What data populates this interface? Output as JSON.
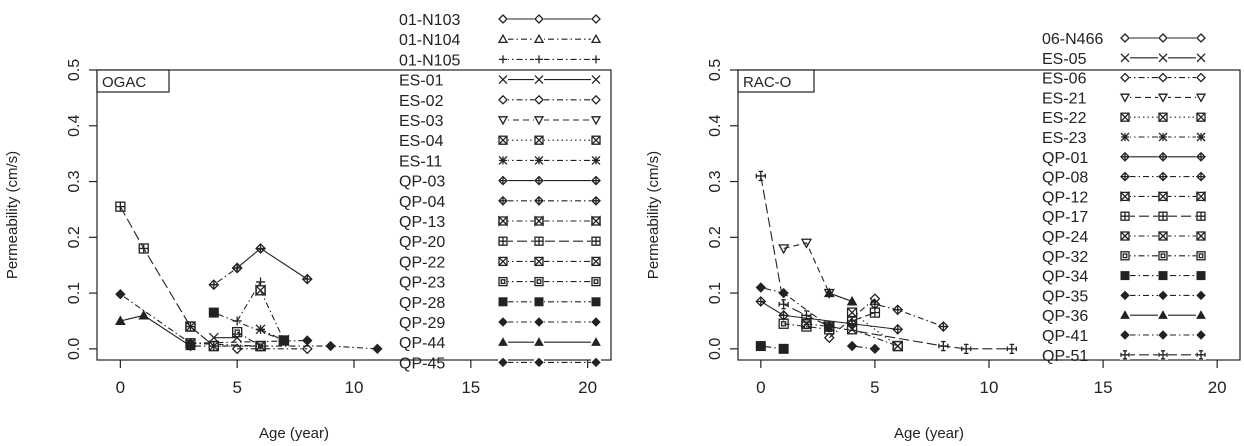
{
  "chart_data": [
    {
      "type": "line",
      "panel_label": "OGAC",
      "xlabel": "Age (year)",
      "ylabel": "Permeability (cm/s)",
      "xlim": [
        -1,
        21
      ],
      "ylim": [
        -0.02,
        0.5
      ],
      "xticks": [
        0,
        5,
        10,
        15,
        20
      ],
      "yticks": [
        0.0,
        0.1,
        0.2,
        0.3,
        0.4,
        0.5
      ],
      "legend_position": "right",
      "series": [
        {
          "name": "01-N103",
          "marker": "diamond-open",
          "dash": "solid",
          "x": [],
          "y": []
        },
        {
          "name": "01-N104",
          "marker": "triangle-open",
          "dash": "dotdash",
          "x": [],
          "y": []
        },
        {
          "name": "01-N105",
          "marker": "plus",
          "dash": "dashdot",
          "x": [
            5,
            6
          ],
          "y": [
            0.05,
            0.12
          ]
        },
        {
          "name": "ES-01",
          "marker": "cross",
          "dash": "solid",
          "x": [
            4,
            5
          ],
          "y": [
            0.02,
            0.02
          ]
        },
        {
          "name": "ES-02",
          "marker": "diamond-open",
          "dash": "dashdot",
          "x": [
            5,
            8
          ],
          "y": [
            0.0,
            0.0
          ]
        },
        {
          "name": "ES-03",
          "marker": "triangle-down-open",
          "dash": "dashed",
          "x": [],
          "y": []
        },
        {
          "name": "ES-04",
          "marker": "square-cross",
          "dash": "dotted",
          "x": [
            3,
            4,
            6
          ],
          "y": [
            0.04,
            0.005,
            0.005
          ]
        },
        {
          "name": "ES-11",
          "marker": "asterisk",
          "dash": "dashdot",
          "x": [
            6,
            7
          ],
          "y": [
            0.035,
            0.015
          ]
        },
        {
          "name": "QP-03",
          "marker": "diamond-plus",
          "dash": "solid",
          "x": [
            5,
            6,
            8
          ],
          "y": [
            0.145,
            0.18,
            0.125
          ]
        },
        {
          "name": "QP-04",
          "marker": "diamond-plus",
          "dash": "dotdash",
          "x": [
            4,
            5
          ],
          "y": [
            0.115,
            0.145
          ]
        },
        {
          "name": "QP-13",
          "marker": "square-bowtie",
          "dash": "dashdot",
          "x": [
            6,
            7
          ],
          "y": [
            0.105,
            0.015
          ]
        },
        {
          "name": "QP-20",
          "marker": "square-plus",
          "dash": "longdash",
          "x": [
            0,
            1,
            3,
            4
          ],
          "y": [
            0.255,
            0.18,
            0.04,
            0.005
          ]
        },
        {
          "name": "QP-22",
          "marker": "square-x",
          "dash": "dashdot",
          "x": [
            3,
            6
          ],
          "y": [
            0.01,
            0.005
          ]
        },
        {
          "name": "QP-23",
          "marker": "square-open",
          "dash": "dashdot",
          "x": [
            5,
            6
          ],
          "y": [
            0.03,
            0.005
          ]
        },
        {
          "name": "QP-28",
          "marker": "square-filled",
          "dash": "dotdash",
          "x": [
            4,
            7
          ],
          "y": [
            0.065,
            0.015
          ]
        },
        {
          "name": "QP-29",
          "marker": "diamond-filled",
          "dash": "dotdash",
          "x": [
            0,
            3,
            8
          ],
          "y": [
            0.098,
            0.01,
            0.015
          ]
        },
        {
          "name": "QP-44",
          "marker": "triangle-filled",
          "dash": "solid",
          "x": [
            0,
            1,
            3
          ],
          "y": [
            0.05,
            0.06,
            0.005
          ]
        },
        {
          "name": "QP-45",
          "marker": "diamond-filled",
          "dash": "dotdash",
          "x": [
            3,
            9,
            11
          ],
          "y": [
            0.005,
            0.005,
            0.0
          ]
        }
      ]
    },
    {
      "type": "line",
      "panel_label": "RAC-O",
      "xlabel": "Age (year)",
      "ylabel": "Permeability (cm/s)",
      "xlim": [
        -1,
        21
      ],
      "ylim": [
        -0.02,
        0.5
      ],
      "xticks": [
        0,
        5,
        10,
        15,
        20
      ],
      "yticks": [
        0.0,
        0.1,
        0.2,
        0.3,
        0.4,
        0.5
      ],
      "legend_position": "right",
      "series": [
        {
          "name": "06-N466",
          "marker": "diamond-open",
          "dash": "solid",
          "x": [],
          "y": []
        },
        {
          "name": "ES-05",
          "marker": "cross",
          "dash": "solid",
          "x": [],
          "y": []
        },
        {
          "name": "ES-06",
          "marker": "diamond-open",
          "dash": "dashdot",
          "x": [
            3,
            5
          ],
          "y": [
            0.02,
            0.09
          ]
        },
        {
          "name": "ES-21",
          "marker": "triangle-down-open",
          "dash": "dashed",
          "x": [
            1,
            2,
            3
          ],
          "y": [
            0.18,
            0.19,
            0.1
          ]
        },
        {
          "name": "ES-22",
          "marker": "square-cross",
          "dash": "dotted",
          "x": [
            4,
            6
          ],
          "y": [
            0.065,
            0.005
          ]
        },
        {
          "name": "ES-23",
          "marker": "asterisk",
          "dash": "dashdot",
          "x": [],
          "y": []
        },
        {
          "name": "QP-01",
          "marker": "diamond-plus",
          "dash": "solid",
          "x": [
            0,
            1,
            4,
            6
          ],
          "y": [
            0.085,
            0.06,
            0.045,
            0.035
          ]
        },
        {
          "name": "QP-08",
          "marker": "diamond-plus",
          "dash": "dotdash",
          "x": [
            5,
            6,
            8
          ],
          "y": [
            0.08,
            0.07,
            0.04
          ]
        },
        {
          "name": "QP-12",
          "marker": "square-bowtie",
          "dash": "dashdot",
          "x": [
            2,
            3
          ],
          "y": [
            0.045,
            0.04
          ]
        },
        {
          "name": "QP-17",
          "marker": "square-plus",
          "dash": "longdash",
          "x": [
            4,
            5
          ],
          "y": [
            0.05,
            0.065
          ]
        },
        {
          "name": "QP-24",
          "marker": "square-x",
          "dash": "dashdot",
          "x": [
            4,
            6
          ],
          "y": [
            0.035,
            0.005
          ]
        },
        {
          "name": "QP-32",
          "marker": "square-open",
          "dash": "dashdot",
          "x": [
            1,
            2,
            3
          ],
          "y": [
            0.045,
            0.04,
            0.035
          ]
        },
        {
          "name": "QP-34",
          "marker": "square-filled",
          "dash": "dotdash",
          "x": [
            0,
            1
          ],
          "y": [
            0.005,
            0.0
          ]
        },
        {
          "name": "QP-35",
          "marker": "diamond-filled",
          "dash": "dotdash",
          "x": [
            0,
            1,
            3
          ],
          "y": [
            0.11,
            0.1,
            0.04
          ]
        },
        {
          "name": "QP-36",
          "marker": "triangle-filled",
          "dash": "solid",
          "x": [
            3,
            4
          ],
          "y": [
            0.1,
            0.085
          ]
        },
        {
          "name": "QP-41",
          "marker": "diamond-filled",
          "dash": "dotdash",
          "x": [
            4,
            5
          ],
          "y": [
            0.005,
            0.0
          ]
        },
        {
          "name": "QP-51",
          "marker": "plus-open",
          "dash": "longdash",
          "x": [
            0,
            1,
            2,
            3,
            8,
            9,
            11
          ],
          "y": [
            0.31,
            0.08,
            0.06,
            0.04,
            0.005,
            0.0,
            0.0
          ]
        }
      ]
    }
  ]
}
